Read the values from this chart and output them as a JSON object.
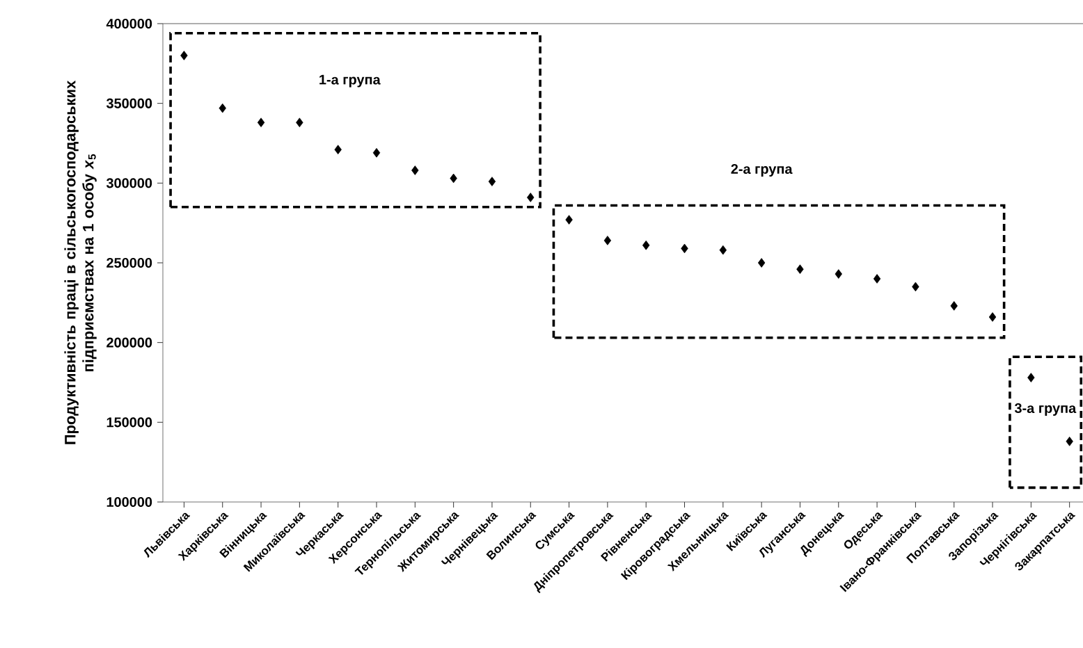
{
  "chart_data": {
    "type": "scatter",
    "ylabel": "Продуктивність праці в сільськогосподарських підприємствах на 1 особу *x*$_{5}$",
    "categories": [
      "Львівська",
      "Харківська",
      "Вінницька",
      "Миколаївська",
      "Черкаська",
      "Херсонська",
      "Тернопільська",
      "Житомирська",
      "Чернівецька",
      "Волинська",
      "Сумська",
      "Дніпропетровська",
      "Рівненська",
      "Кіровоградська",
      "Хмельницька",
      "Київська",
      "Луганська",
      "Донецька",
      "Одеська",
      "Івано-Франківська",
      "Полтавська",
      "Запорізька",
      "Чернігівська",
      "Закарпатська"
    ],
    "values": [
      380000,
      347000,
      338000,
      338000,
      321000,
      319000,
      308000,
      303000,
      301000,
      291000,
      277000,
      264000,
      261000,
      259000,
      258000,
      250000,
      246000,
      243000,
      240000,
      235000,
      223000,
      216000,
      178000,
      138000
    ],
    "color": "#000000",
    "marker": "diamond",
    "ylim": [
      100000,
      400000
    ],
    "yticks": [
      100000,
      150000,
      200000,
      250000,
      300000,
      350000,
      400000
    ],
    "annotations": [
      "1-а група",
      "2-а група",
      "3-а група"
    ]
  }
}
